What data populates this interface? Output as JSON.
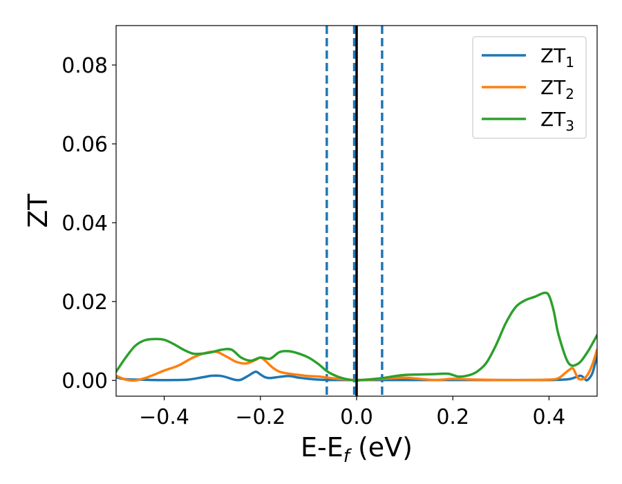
{
  "chart_data": {
    "type": "line",
    "xlabel": {
      "base": "E-E",
      "subscript": "f",
      "suffix": " (eV)"
    },
    "ylabel": "ZT",
    "xlim": [
      -0.5,
      0.5
    ],
    "ylim": [
      -0.004,
      0.09
    ],
    "xticks": [
      -0.4,
      -0.2,
      0.0,
      0.2,
      0.4
    ],
    "xtick_labels": [
      "−0.4",
      "−0.2",
      "0.0",
      "0.2",
      "0.4"
    ],
    "yticks": [
      0.0,
      0.02,
      0.04,
      0.06,
      0.08
    ],
    "ytick_labels": [
      "0.00",
      "0.02",
      "0.04",
      "0.06",
      "0.08"
    ],
    "grid": false,
    "legend_position": "top-right",
    "vlines": [
      {
        "x": -0.062,
        "style": "dashed",
        "color": "#1f77b4"
      },
      {
        "x": -0.005,
        "style": "dashed",
        "color": "#1f77b4"
      },
      {
        "x": 0.053,
        "style": "dashed",
        "color": "#1f77b4"
      },
      {
        "x": 0.0,
        "style": "solid",
        "color": "#000000"
      }
    ],
    "series": [
      {
        "name": "ZT",
        "subscript": "1",
        "color": "#1f77b4",
        "x": [
          -0.5,
          -0.48,
          -0.45,
          -0.42,
          -0.38,
          -0.35,
          -0.32,
          -0.3,
          -0.28,
          -0.26,
          -0.25,
          -0.24,
          -0.225,
          -0.21,
          -0.2,
          -0.19,
          -0.18,
          -0.16,
          -0.14,
          -0.12,
          -0.1,
          -0.08,
          -0.06,
          -0.04,
          -0.02,
          0.0,
          0.02,
          0.05,
          0.1,
          0.2,
          0.3,
          0.4,
          0.44,
          0.455,
          0.465,
          0.47,
          0.475,
          0.48,
          0.49,
          0.5
        ],
        "y": [
          0.0008,
          0.0003,
          0.0002,
          0.0001,
          0.0001,
          0.0002,
          0.0008,
          0.0012,
          0.0011,
          0.0004,
          0.0001,
          0.0002,
          0.0012,
          0.0022,
          0.0015,
          0.0008,
          0.0006,
          0.0009,
          0.0011,
          0.0007,
          0.0004,
          0.0002,
          0.0001,
          0.0001,
          0.0001,
          0.0001,
          0.0001,
          0.0001,
          0.0001,
          0.0001,
          0.0001,
          0.0001,
          0.0003,
          0.0008,
          0.0012,
          0.0009,
          0.0003,
          0.0001,
          0.0018,
          0.0062
        ]
      },
      {
        "name": "ZT",
        "subscript": "2",
        "color": "#ff7f0e",
        "x": [
          -0.5,
          -0.48,
          -0.46,
          -0.44,
          -0.42,
          -0.4,
          -0.37,
          -0.34,
          -0.31,
          -0.29,
          -0.27,
          -0.25,
          -0.23,
          -0.21,
          -0.2,
          -0.19,
          -0.175,
          -0.16,
          -0.14,
          -0.12,
          -0.1,
          -0.08,
          -0.06,
          -0.04,
          -0.02,
          0.0,
          0.03,
          0.06,
          0.1,
          0.13,
          0.16,
          0.18,
          0.2,
          0.25,
          0.3,
          0.35,
          0.4,
          0.42,
          0.44,
          0.45,
          0.46,
          0.47,
          0.48,
          0.49,
          0.5
        ],
        "y": [
          0.0012,
          0.0002,
          0.0,
          0.0006,
          0.0015,
          0.0025,
          0.0038,
          0.0058,
          0.0071,
          0.0072,
          0.006,
          0.0047,
          0.0043,
          0.0052,
          0.0058,
          0.005,
          0.0033,
          0.0022,
          0.0017,
          0.0014,
          0.0011,
          0.001,
          0.0007,
          0.0004,
          0.0002,
          0.0001,
          0.0002,
          0.0005,
          0.0007,
          0.0004,
          0.0001,
          0.0002,
          0.0004,
          0.0002,
          0.0001,
          0.0001,
          0.0002,
          0.0006,
          0.0025,
          0.003,
          0.0006,
          0.0003,
          0.0014,
          0.004,
          0.0078
        ]
      },
      {
        "name": "ZT",
        "subscript": "3",
        "color": "#2ca02c",
        "x": [
          -0.5,
          -0.48,
          -0.46,
          -0.44,
          -0.42,
          -0.4,
          -0.38,
          -0.36,
          -0.34,
          -0.32,
          -0.3,
          -0.28,
          -0.26,
          -0.24,
          -0.22,
          -0.2,
          -0.18,
          -0.16,
          -0.14,
          -0.12,
          -0.1,
          -0.08,
          -0.06,
          -0.04,
          -0.02,
          0.0,
          0.02,
          0.04,
          0.06,
          0.08,
          0.1,
          0.13,
          0.16,
          0.19,
          0.21,
          0.23,
          0.25,
          0.27,
          0.29,
          0.31,
          0.33,
          0.35,
          0.37,
          0.39,
          0.4,
          0.41,
          0.42,
          0.44,
          0.46,
          0.48,
          0.5
        ],
        "y": [
          0.0022,
          0.0058,
          0.0088,
          0.0102,
          0.0105,
          0.0103,
          0.0092,
          0.0078,
          0.0068,
          0.0068,
          0.0072,
          0.0078,
          0.0078,
          0.0058,
          0.005,
          0.0058,
          0.0055,
          0.0072,
          0.0074,
          0.0068,
          0.0058,
          0.0042,
          0.0022,
          0.001,
          0.0003,
          0.0,
          0.0002,
          0.0004,
          0.0007,
          0.0011,
          0.0014,
          0.0015,
          0.0016,
          0.0017,
          0.001,
          0.0012,
          0.0022,
          0.0045,
          0.009,
          0.0145,
          0.0185,
          0.0203,
          0.0212,
          0.0222,
          0.0215,
          0.0175,
          0.0115,
          0.0045,
          0.0042,
          0.0072,
          0.0115
        ]
      }
    ]
  }
}
